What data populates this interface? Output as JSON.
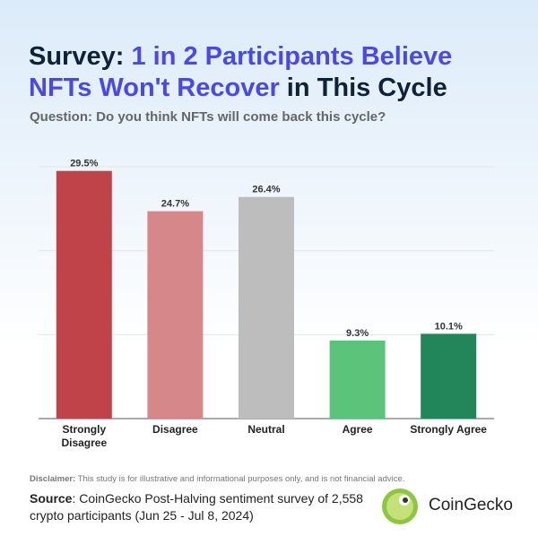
{
  "chart_data": {
    "type": "bar",
    "title_segments": [
      {
        "text": "Survey: ",
        "color": "#10223a"
      },
      {
        "text": "1 in 2 Participants Believe NFTs Won't Recover",
        "color": "#4a49e8"
      },
      {
        "text": " in This Cycle",
        "color": "#10223a"
      }
    ],
    "subtitle": "Question: Do you think NFTs will come back this cycle?",
    "categories": [
      "Strongly Disagree",
      "Disagree",
      "Neutral",
      "Agree",
      "Strongly Agree"
    ],
    "values": [
      29.5,
      24.7,
      26.4,
      9.3,
      10.1
    ],
    "value_labels": [
      "29.5%",
      "24.7%",
      "26.4%",
      "9.3%",
      "10.1%"
    ],
    "colors": [
      "#c0434a",
      "#d6878a",
      "#bdbdbd",
      "#5bc47a",
      "#23865a"
    ],
    "ylim": [
      0,
      30
    ],
    "yticks": [
      0,
      10,
      20,
      30
    ],
    "show_tick_labels": false,
    "grid": true,
    "disclaimer_label": "Disclaimer:",
    "disclaimer": "This study is for illustrative and informational purposes only, and is not financial advice.",
    "source_label": "Source",
    "source": ": CoinGecko Post-Halving sentiment survey of 2,558 crypto participants (Jun 25 - Jul 8, 2024)",
    "brand": "CoinGecko"
  }
}
